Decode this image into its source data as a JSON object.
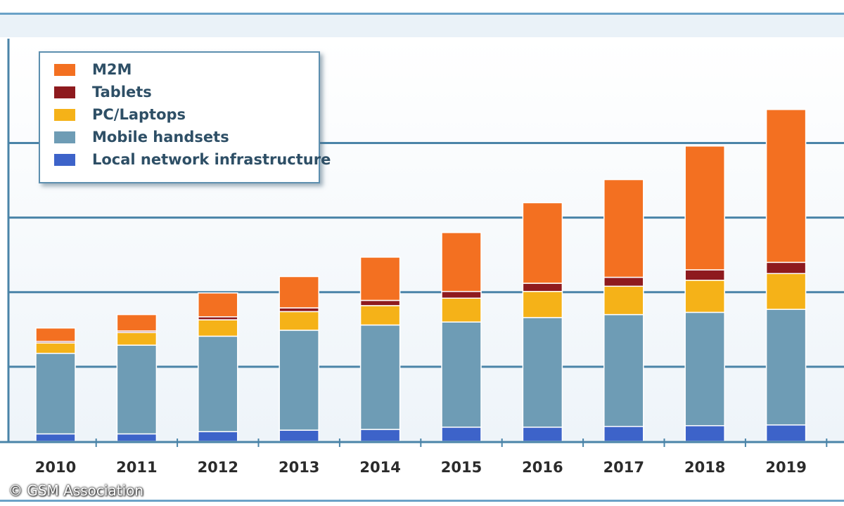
{
  "chart_data": {
    "type": "bar",
    "stacked": true,
    "title": "",
    "xlabel": "",
    "ylabel": "",
    "categories": [
      "2010",
      "2011",
      "2012",
      "2013",
      "2014",
      "2015",
      "2016",
      "2017",
      "2018",
      "2019"
    ],
    "ylim": [
      0,
      5.4
    ],
    "grid": true,
    "legend_position": "top-left",
    "series": [
      {
        "name": "Local network infrastructure",
        "color": "#3d63c9",
        "values": [
          0.1,
          0.1,
          0.13,
          0.15,
          0.16,
          0.19,
          0.19,
          0.2,
          0.21,
          0.22
        ]
      },
      {
        "name": "Mobile handsets",
        "color": "#6e9cb5",
        "values": [
          1.08,
          1.19,
          1.28,
          1.34,
          1.4,
          1.41,
          1.47,
          1.5,
          1.52,
          1.55
        ]
      },
      {
        "name": "PC/Laptops",
        "color": "#f5b218",
        "values": [
          0.14,
          0.17,
          0.22,
          0.25,
          0.26,
          0.32,
          0.35,
          0.38,
          0.43,
          0.48
        ]
      },
      {
        "name": "Tablets",
        "color": "#8e1a1e",
        "values": [
          0.02,
          0.02,
          0.04,
          0.05,
          0.07,
          0.09,
          0.11,
          0.12,
          0.14,
          0.15
        ]
      },
      {
        "name": "M2M",
        "color": "#f37021",
        "values": [
          0.18,
          0.22,
          0.32,
          0.42,
          0.58,
          0.79,
          1.08,
          1.31,
          1.66,
          2.05
        ]
      }
    ]
  },
  "legend": {
    "items": [
      {
        "label": "M2M",
        "color": "#f37021"
      },
      {
        "label": "Tablets",
        "color": "#8e1a1e"
      },
      {
        "label": "PC/Laptops",
        "color": "#f5b218"
      },
      {
        "label": "Mobile handsets",
        "color": "#6e9cb5"
      },
      {
        "label": "Local network infrastructure",
        "color": "#3d63c9"
      }
    ]
  },
  "footer": {
    "copyright": "© GSM Association"
  }
}
